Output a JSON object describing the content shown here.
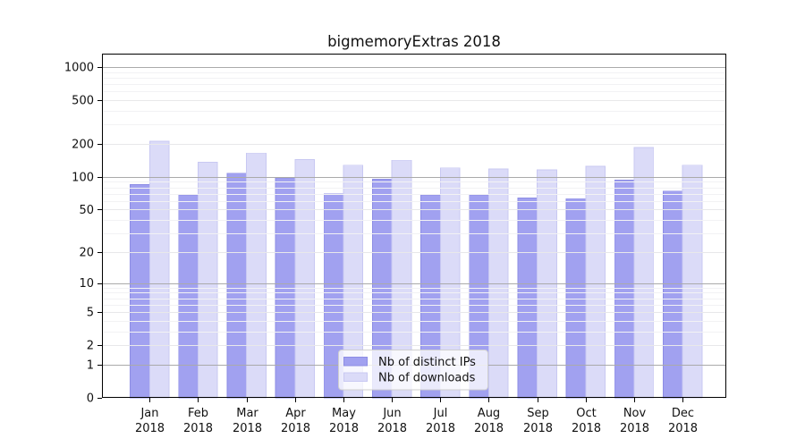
{
  "chart_data": {
    "type": "bar",
    "title": "bigmemoryExtras 2018",
    "categories": [
      "Jan",
      "Feb",
      "Mar",
      "Apr",
      "May",
      "Jun",
      "Jul",
      "Aug",
      "Sep",
      "Oct",
      "Nov",
      "Dec"
    ],
    "category_year": "2018",
    "series": [
      {
        "name": "Nb of distinct IPs",
        "color": "#a1a1f0",
        "edge_color": "#8d8de4",
        "values": [
          85,
          68,
          108,
          98,
          70,
          95,
          68,
          68,
          64,
          63,
          93,
          74
        ]
      },
      {
        "name": "Nb of downloads",
        "color": "#dbdbf8",
        "edge_color": "#c8c8f2",
        "values": [
          212,
          136,
          165,
          144,
          128,
          142,
          121,
          118,
          116,
          125,
          186,
          128
        ]
      }
    ],
    "yscale": "log10(value+1)",
    "yticks": [
      0,
      1,
      2,
      5,
      10,
      20,
      50,
      100,
      200,
      500,
      1000
    ],
    "grid_mid_values": [
      2,
      5,
      20,
      50,
      200,
      500
    ],
    "grid_major_values": [
      1,
      10,
      100,
      1000
    ],
    "minor_gridlines": [
      3,
      4,
      6,
      7,
      8,
      9,
      30,
      40,
      60,
      70,
      80,
      90,
      300,
      400,
      600,
      700,
      800,
      900
    ],
    "ylim": [
      0,
      1320
    ],
    "grid": true,
    "legend": {
      "position": "lower center",
      "labels": [
        "Nb of distinct IPs",
        "Nb of downloads"
      ],
      "background": "#ffffff",
      "border_color": "#cfcfcf"
    },
    "colors": {
      "axis": "#000000",
      "text": "#111111",
      "grid_major": "#aaaaaa",
      "grid_mid": "#e8e8ea",
      "grid_minor": "#f2f2f4",
      "background": "#ffffff"
    }
  }
}
